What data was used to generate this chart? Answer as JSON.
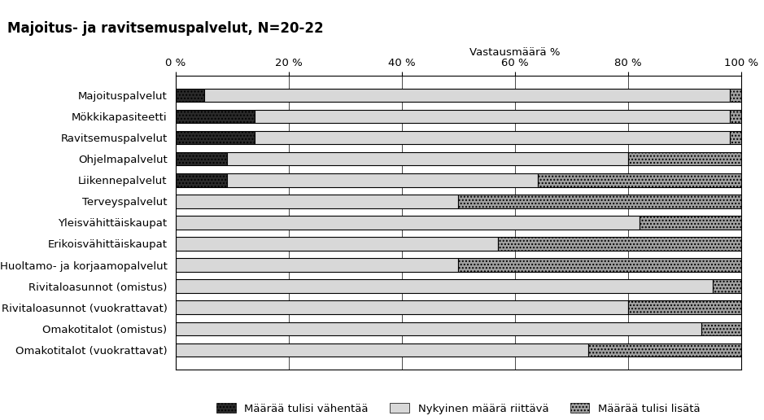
{
  "title": "Majoitus- ja ravitsemuspalvelut, N=20-22",
  "xlabel": "Vastausmäärä %",
  "categories_display": [
    "Majoituspalvelut",
    "Mökkikapasiteetti",
    "Ravitsemuspalvelut",
    "Ohjelmapalvelut",
    "Liikennepalvelut",
    "Terveyspalvelut",
    "Yleisvähittäiskaupat",
    "Erikoisvähittäiskaupat",
    "Huoltamo- ja korjaamopalvelut",
    "Rivitaloasunnot (omistus)",
    "Rivitaloasunnot (vuokrattavat)",
    "Omakotitalot (omistus)",
    "Omakotitalot (vuokrattavat)"
  ],
  "series": {
    "vahentaa": [
      5,
      14,
      14,
      9,
      9,
      0,
      0,
      0,
      0,
      0,
      0,
      0,
      0
    ],
    "riittava": [
      93,
      84,
      84,
      71,
      55,
      50,
      82,
      57,
      50,
      95,
      80,
      93,
      73
    ],
    "lisata": [
      2,
      2,
      2,
      20,
      36,
      50,
      18,
      43,
      50,
      5,
      20,
      7,
      27
    ]
  },
  "colors": {
    "vahentaa": "#2a2a2a",
    "riittava": "#d8d8d8",
    "lisata": "#a0a0a0"
  },
  "legend_labels": {
    "vahentaa": "Määrää tulisi vähentää",
    "riittava": "Nykyinen määrä riittävä",
    "lisata": "Määrää tulisi lisätä"
  },
  "hatch": {
    "vahentaa": "....",
    "riittava": "",
    "lisata": "...."
  },
  "xlim": [
    0,
    100
  ],
  "xticks": [
    0,
    20,
    40,
    60,
    80,
    100
  ],
  "xtick_labels": [
    "0 %",
    "20 %",
    "40 %",
    "60 %",
    "80 %",
    "100 %"
  ]
}
